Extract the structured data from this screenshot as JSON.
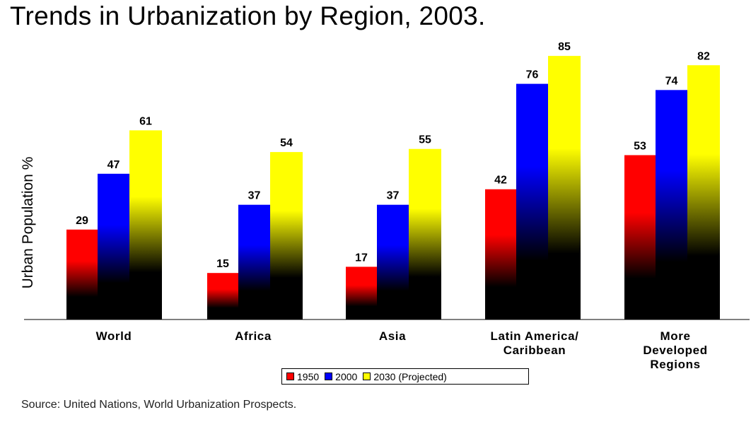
{
  "chart_data": {
    "type": "bar",
    "title": "Trends in Urbanization by Region, 2003.",
    "xlabel": "",
    "ylabel": "Urban Population %",
    "ylim": [
      0,
      90
    ],
    "grid": false,
    "legend_position": "bottom",
    "categories": [
      [
        "World"
      ],
      [
        "Africa"
      ],
      [
        "Asia"
      ],
      [
        "Latin America/",
        "Caribbean"
      ],
      [
        "More",
        "Developed",
        "Regions"
      ]
    ],
    "series": [
      {
        "name": "1950",
        "color": "#ff0000",
        "values": [
          29,
          15,
          17,
          42,
          53
        ]
      },
      {
        "name": "2000",
        "color": "#0000ff",
        "values": [
          47,
          37,
          37,
          76,
          74
        ]
      },
      {
        "name": "2030 (Projected)",
        "color": "#ffff00",
        "values": [
          61,
          54,
          55,
          85,
          82
        ]
      }
    ],
    "source": "Source: United Nations, World Urbanization Prospects."
  }
}
